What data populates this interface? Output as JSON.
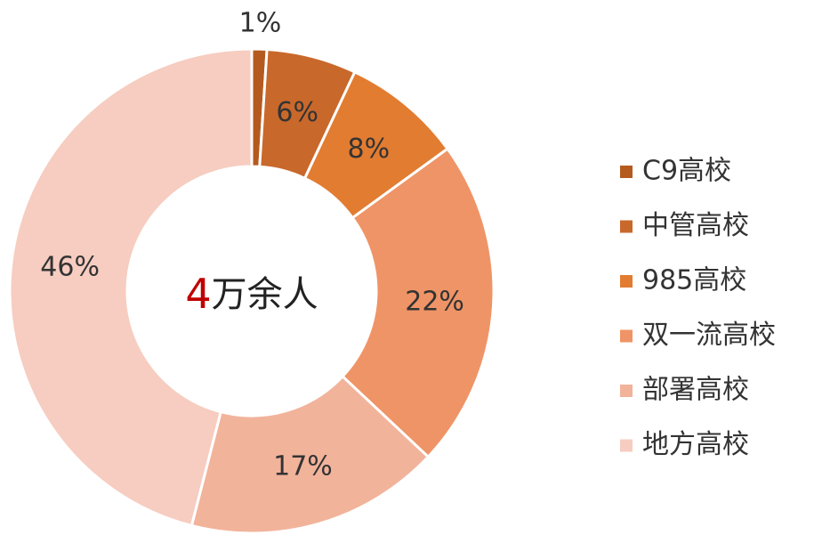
{
  "chart_data": {
    "type": "donut",
    "categories": [
      "C9高校",
      "中管高校",
      "985高校",
      "双一流高校",
      "部署高校",
      "地方高校"
    ],
    "values": [
      1,
      6,
      8,
      22,
      17,
      46
    ],
    "value_labels": [
      "1%",
      "6%",
      "8%",
      "22%",
      "17%",
      "46%"
    ],
    "colors": [
      "#b55a1e",
      "#c9682b",
      "#e27c31",
      "#ef9466",
      "#f2b39b",
      "#f6cdc0"
    ],
    "center_label": {
      "number": "4",
      "text": "万余人"
    },
    "legend": "right"
  }
}
